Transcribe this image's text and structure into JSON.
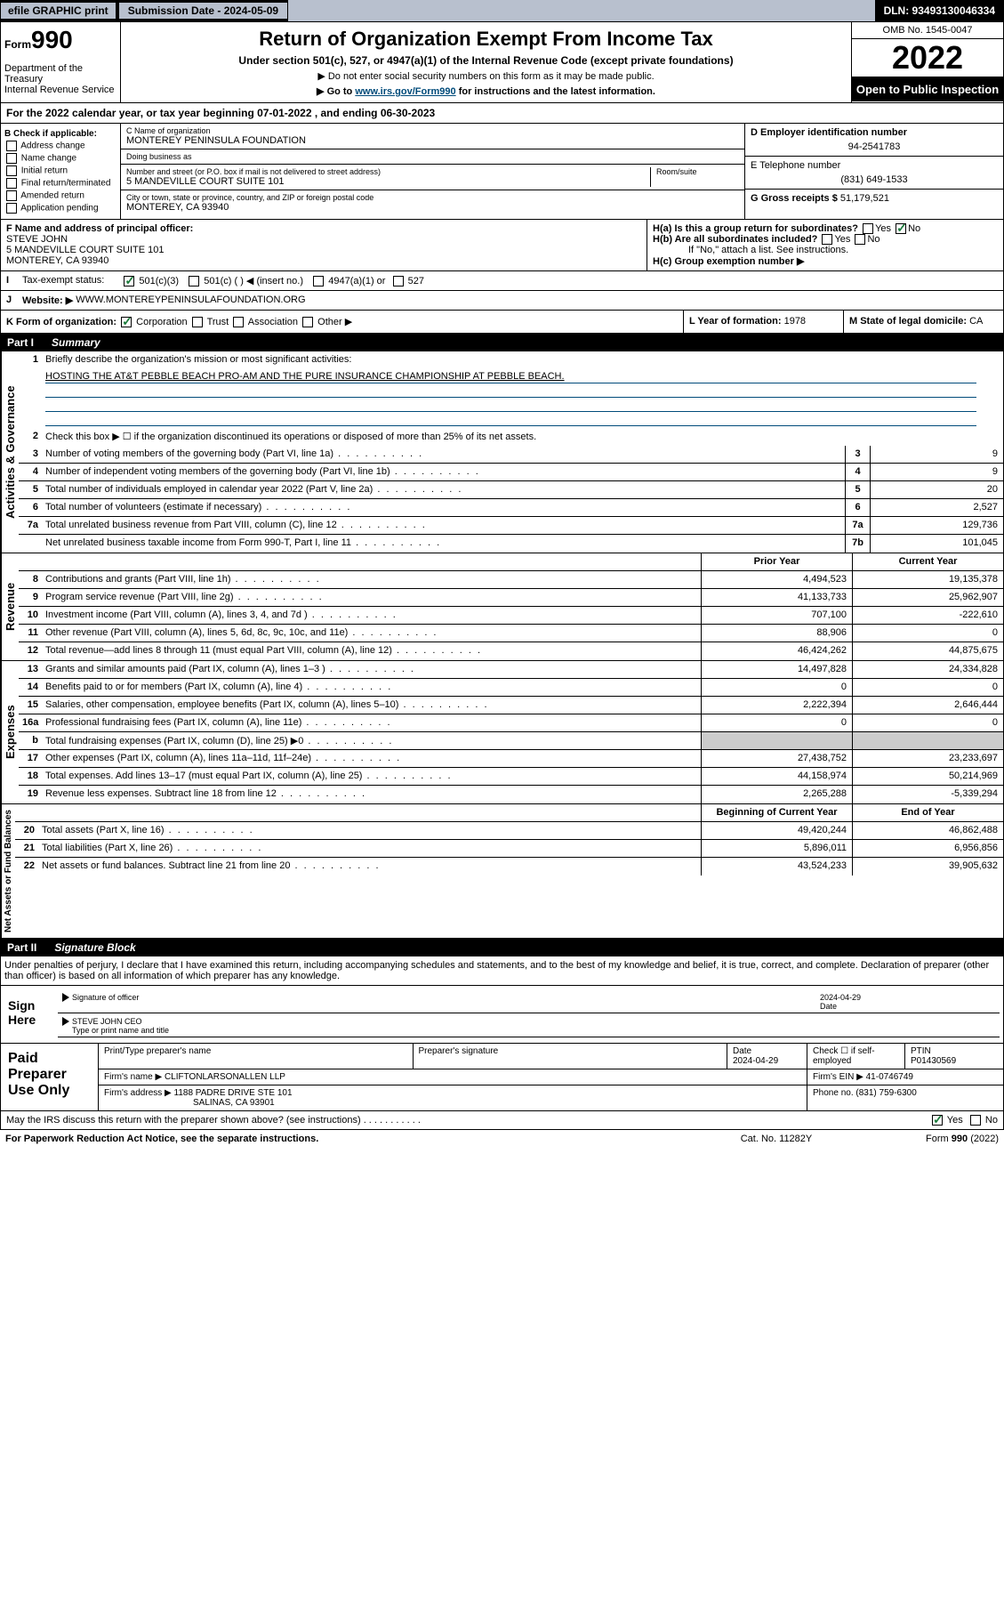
{
  "topbar": {
    "efile": "efile GRAPHIC print",
    "subdate_lbl": "Submission Date - 2024-05-09",
    "dln": "DLN: 93493130046334"
  },
  "header": {
    "form": "990",
    "form_prefix": "Form",
    "title": "Return of Organization Exempt From Income Tax",
    "sub": "Under section 501(c), 527, or 4947(a)(1) of the Internal Revenue Code (except private foundations)",
    "note1": "▶ Do not enter social security numbers on this form as it may be made public.",
    "note2_pre": "▶ Go to ",
    "note2_link": "www.irs.gov/Form990",
    "note2_post": " for instructions and the latest information.",
    "dept": "Department of the Treasury\nInternal Revenue Service",
    "omb": "OMB No. 1545-0047",
    "year": "2022",
    "openpub": "Open to Public Inspection"
  },
  "line_a": "For the 2022 calendar year, or tax year beginning 07-01-2022   , and ending 06-30-2023",
  "sectB": {
    "hdr": "B Check if applicable:",
    "items": [
      "Address change",
      "Name change",
      "Initial return",
      "Final return/terminated",
      "Amended return",
      "Application pending"
    ]
  },
  "sectC": {
    "name_lbl": "C Name of organization",
    "name": "MONTEREY PENINSULA FOUNDATION",
    "dba_lbl": "Doing business as",
    "dba": "",
    "street_lbl": "Number and street (or P.O. box if mail is not delivered to street address)",
    "room_lbl": "Room/suite",
    "street": "5 MANDEVILLE COURT SUITE 101",
    "city_lbl": "City or town, state or province, country, and ZIP or foreign postal code",
    "city": "MONTEREY, CA  93940"
  },
  "sectD": {
    "ein_lbl": "D Employer identification number",
    "ein": "94-2541783",
    "phone_lbl": "E Telephone number",
    "phone": "(831) 649-1533",
    "gross_lbl": "G Gross receipts $",
    "gross": "51,179,521"
  },
  "sectF": {
    "lbl": "F Name and address of principal officer:",
    "name": "STEVE JOHN",
    "addr1": "5 MANDEVILLE COURT SUITE 101",
    "addr2": "MONTEREY, CA  93940"
  },
  "sectH": {
    "ha": "H(a)  Is this a group return for subordinates?",
    "hb": "H(b)  Are all subordinates included?",
    "hb_note": "If \"No,\" attach a list. See instructions.",
    "hc": "H(c)  Group exemption number ▶"
  },
  "sectI": {
    "lbl": "Tax-exempt status:",
    "opts": [
      "501(c)(3)",
      "501(c) (  ) ◀ (insert no.)",
      "4947(a)(1) or",
      "527"
    ]
  },
  "sectJ": {
    "lbl": "Website: ▶",
    "val": "WWW.MONTEREYPENINSULAFOUNDATION.ORG"
  },
  "sectK": {
    "lbl": "K Form of organization:",
    "opts": [
      "Corporation",
      "Trust",
      "Association",
      "Other ▶"
    ]
  },
  "sectL": {
    "lbl": "L Year of formation:",
    "val": "1978"
  },
  "sectM": {
    "lbl": "M State of legal domicile:",
    "val": "CA"
  },
  "part1": {
    "hdr_num": "Part I",
    "hdr_title": "Summary",
    "q1": "Briefly describe the organization's mission or most significant activities:",
    "q1_val": "HOSTING THE AT&T PEBBLE BEACH PRO-AM AND THE PURE INSURANCE CHAMPIONSHIP AT PEBBLE BEACH.",
    "q2": "Check this box ▶ ☐  if the organization discontinued its operations or disposed of more than 25% of its net assets.",
    "gov_label": "Activities & Governance",
    "rev_label": "Revenue",
    "exp_label": "Expenses",
    "net_label": "Net Assets or Fund Balances",
    "prior_hdr": "Prior Year",
    "curr_hdr": "Current Year",
    "begin_hdr": "Beginning of Current Year",
    "end_hdr": "End of Year",
    "lines_gov": [
      {
        "n": "3",
        "d": "Number of voting members of the governing body (Part VI, line 1a)",
        "box": "3",
        "v": "9"
      },
      {
        "n": "4",
        "d": "Number of independent voting members of the governing body (Part VI, line 1b)",
        "box": "4",
        "v": "9"
      },
      {
        "n": "5",
        "d": "Total number of individuals employed in calendar year 2022 (Part V, line 2a)",
        "box": "5",
        "v": "20"
      },
      {
        "n": "6",
        "d": "Total number of volunteers (estimate if necessary)",
        "box": "6",
        "v": "2,527"
      },
      {
        "n": "7a",
        "d": "Total unrelated business revenue from Part VIII, column (C), line 12",
        "box": "7a",
        "v": "129,736"
      },
      {
        "n": "",
        "d": "Net unrelated business taxable income from Form 990-T, Part I, line 11",
        "box": "7b",
        "v": "101,045"
      }
    ],
    "lines_rev": [
      {
        "n": "8",
        "d": "Contributions and grants (Part VIII, line 1h)",
        "p": "4,494,523",
        "c": "19,135,378"
      },
      {
        "n": "9",
        "d": "Program service revenue (Part VIII, line 2g)",
        "p": "41,133,733",
        "c": "25,962,907"
      },
      {
        "n": "10",
        "d": "Investment income (Part VIII, column (A), lines 3, 4, and 7d )",
        "p": "707,100",
        "c": "-222,610"
      },
      {
        "n": "11",
        "d": "Other revenue (Part VIII, column (A), lines 5, 6d, 8c, 9c, 10c, and 11e)",
        "p": "88,906",
        "c": "0"
      },
      {
        "n": "12",
        "d": "Total revenue—add lines 8 through 11 (must equal Part VIII, column (A), line 12)",
        "p": "46,424,262",
        "c": "44,875,675"
      }
    ],
    "lines_exp": [
      {
        "n": "13",
        "d": "Grants and similar amounts paid (Part IX, column (A), lines 1–3 )",
        "p": "14,497,828",
        "c": "24,334,828"
      },
      {
        "n": "14",
        "d": "Benefits paid to or for members (Part IX, column (A), line 4)",
        "p": "0",
        "c": "0"
      },
      {
        "n": "15",
        "d": "Salaries, other compensation, employee benefits (Part IX, column (A), lines 5–10)",
        "p": "2,222,394",
        "c": "2,646,444"
      },
      {
        "n": "16a",
        "d": "Professional fundraising fees (Part IX, column (A), line 11e)",
        "p": "0",
        "c": "0"
      },
      {
        "n": "b",
        "d": "Total fundraising expenses (Part IX, column (D), line 25) ▶0",
        "p": "",
        "c": "",
        "shaded": true
      },
      {
        "n": "17",
        "d": "Other expenses (Part IX, column (A), lines 11a–11d, 11f–24e)",
        "p": "27,438,752",
        "c": "23,233,697"
      },
      {
        "n": "18",
        "d": "Total expenses. Add lines 13–17 (must equal Part IX, column (A), line 25)",
        "p": "44,158,974",
        "c": "50,214,969"
      },
      {
        "n": "19",
        "d": "Revenue less expenses. Subtract line 18 from line 12",
        "p": "2,265,288",
        "c": "-5,339,294"
      }
    ],
    "lines_net": [
      {
        "n": "20",
        "d": "Total assets (Part X, line 16)",
        "p": "49,420,244",
        "c": "46,862,488"
      },
      {
        "n": "21",
        "d": "Total liabilities (Part X, line 26)",
        "p": "5,896,011",
        "c": "6,956,856"
      },
      {
        "n": "22",
        "d": "Net assets or fund balances. Subtract line 21 from line 20",
        "p": "43,524,233",
        "c": "39,905,632"
      }
    ]
  },
  "part2": {
    "hdr_num": "Part II",
    "hdr_title": "Signature Block",
    "decl": "Under penalties of perjury, I declare that I have examined this return, including accompanying schedules and statements, and to the best of my knowledge and belief, it is true, correct, and complete. Declaration of preparer (other than officer) is based on all information of which preparer has any knowledge.",
    "sign_here": "Sign Here",
    "sig_officer": "Signature of officer",
    "sig_date": "2024-04-29",
    "sig_date_lbl": "Date",
    "sig_name": "STEVE JOHN CEO",
    "sig_name_lbl": "Type or print name and title",
    "paid_lbl": "Paid Preparer Use Only",
    "prep_name_lbl": "Print/Type preparer's name",
    "prep_sig_lbl": "Preparer's signature",
    "prep_date_lbl": "Date",
    "prep_date": "2024-04-29",
    "prep_check_lbl": "Check ☐ if self-employed",
    "ptin_lbl": "PTIN",
    "ptin": "P01430569",
    "firm_name_lbl": "Firm's name    ▶",
    "firm_name": "CLIFTONLARSONALLEN LLP",
    "firm_ein_lbl": "Firm's EIN ▶",
    "firm_ein": "41-0746749",
    "firm_addr_lbl": "Firm's address ▶",
    "firm_addr1": "1188 PADRE DRIVE STE 101",
    "firm_addr2": "SALINAS, CA  93901",
    "firm_phone_lbl": "Phone no.",
    "firm_phone": "(831) 759-6300",
    "discuss": "May the IRS discuss this return with the preparer shown above? (see instructions)"
  },
  "footer": {
    "pra": "For Paperwork Reduction Act Notice, see the separate instructions.",
    "cat": "Cat. No. 11282Y",
    "form": "Form 990 (2022)"
  }
}
